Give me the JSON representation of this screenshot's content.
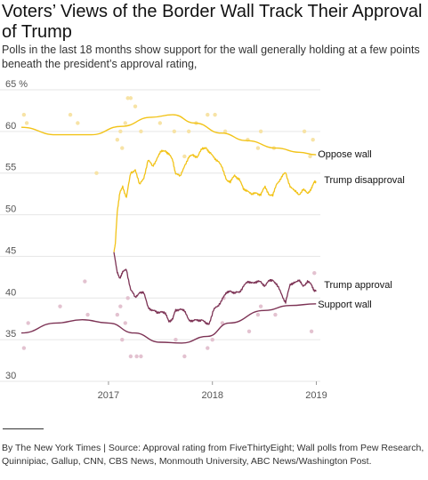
{
  "header": {
    "title": "Voters’ Views of the Border Wall Track Their Approval of Trump",
    "subtitle": "Polls in the last 18 months show support for the wall generally holding at a few points beneath the president’s approval rating,"
  },
  "footer": {
    "credit": "By The New York Times | Source: Approval rating from FiveThirtyEight; Wall polls from Pew Research, Quinnipiac, Gallup, CNN, CBS News, Monmouth University, ABC News/Washington Post."
  },
  "colors": {
    "approval": "#7d3355",
    "disapproval": "#f2c318",
    "oppose_dots": "#f7e3a6",
    "support_dots": "#e3c2d0",
    "grid": "#e6e6e6"
  },
  "chart_data": {
    "type": "line",
    "x_range": [
      "2016-03-01",
      "2019-01-15"
    ],
    "ylim": [
      30,
      65
    ],
    "y_ticks": [
      30,
      35,
      40,
      45,
      50,
      55,
      60,
      65
    ],
    "y_tick_labels": [
      "30",
      "35",
      "40",
      "45",
      "50",
      "55",
      "60",
      "65 %"
    ],
    "x_ticks": [
      "2017",
      "2018",
      "2019"
    ],
    "x_tick_dates": [
      "2017-01-01",
      "2018-01-01",
      "2019-01-01"
    ],
    "grid": "horizontal",
    "series": [
      {
        "name": "Oppose wall",
        "style": "trend",
        "points": [
          [
            "2016-03-01",
            60.5
          ],
          [
            "2016-07-01",
            59.6
          ],
          [
            "2016-11-01",
            59.6
          ],
          [
            "2017-02-15",
            60.6
          ],
          [
            "2017-06-01",
            61.7
          ],
          [
            "2017-08-15",
            62.0
          ],
          [
            "2017-11-01",
            61.0
          ],
          [
            "2018-02-01",
            59.8
          ],
          [
            "2018-05-01",
            58.9
          ],
          [
            "2018-08-15",
            58.0
          ],
          [
            "2018-11-01",
            57.5
          ],
          [
            "2018-12-31",
            57.2
          ]
        ]
      },
      {
        "name": "Trump disapproval",
        "style": "daily",
        "points": [
          [
            "2017-01-20",
            45.5
          ],
          [
            "2017-01-25",
            46.5
          ],
          [
            "2017-02-01",
            50.5
          ],
          [
            "2017-02-10",
            52.5
          ],
          [
            "2017-02-20",
            53.5
          ],
          [
            "2017-03-05",
            52.0
          ],
          [
            "2017-03-20",
            55.0
          ],
          [
            "2017-04-05",
            55.5
          ],
          [
            "2017-04-20",
            53.5
          ],
          [
            "2017-05-05",
            54.5
          ],
          [
            "2017-05-20",
            56.5
          ],
          [
            "2017-06-05",
            55.8
          ],
          [
            "2017-06-20",
            56.8
          ],
          [
            "2017-07-05",
            57.5
          ],
          [
            "2017-07-20",
            57.8
          ],
          [
            "2017-08-01",
            57.2
          ],
          [
            "2017-08-15",
            56.5
          ],
          [
            "2017-08-25",
            55.0
          ],
          [
            "2017-09-10",
            54.5
          ],
          [
            "2017-09-25",
            56.0
          ],
          [
            "2017-10-10",
            56.8
          ],
          [
            "2017-10-25",
            57.2
          ],
          [
            "2017-11-10",
            57.0
          ],
          [
            "2017-11-25",
            57.8
          ],
          [
            "2017-12-10",
            58.2
          ],
          [
            "2017-12-20",
            57.4
          ],
          [
            "2018-01-05",
            57.0
          ],
          [
            "2018-01-20",
            56.5
          ],
          [
            "2018-02-05",
            55.5
          ],
          [
            "2018-02-20",
            54.3
          ],
          [
            "2018-03-05",
            53.8
          ],
          [
            "2018-03-20",
            54.8
          ],
          [
            "2018-04-05",
            54.3
          ],
          [
            "2018-04-20",
            53.0
          ],
          [
            "2018-05-05",
            53.0
          ],
          [
            "2018-05-20",
            52.3
          ],
          [
            "2018-06-05",
            52.7
          ],
          [
            "2018-06-20",
            52.4
          ],
          [
            "2018-07-05",
            53.3
          ],
          [
            "2018-07-20",
            52.5
          ],
          [
            "2018-08-01",
            52.2
          ],
          [
            "2018-08-15",
            53.8
          ],
          [
            "2018-09-01",
            54.5
          ],
          [
            "2018-09-15",
            55.0
          ],
          [
            "2018-10-01",
            53.5
          ],
          [
            "2018-10-15",
            52.8
          ],
          [
            "2018-11-01",
            52.5
          ],
          [
            "2018-11-15",
            53.0
          ],
          [
            "2018-12-01",
            52.5
          ],
          [
            "2018-12-15",
            53.3
          ],
          [
            "2018-12-25",
            53.8
          ],
          [
            "2018-12-31",
            54.0
          ]
        ]
      },
      {
        "name": "Trump approval",
        "style": "daily",
        "points": [
          [
            "2017-01-20",
            45.5
          ],
          [
            "2017-01-25",
            44.5
          ],
          [
            "2017-02-01",
            43.0
          ],
          [
            "2017-02-10",
            42.5
          ],
          [
            "2017-02-20",
            43.0
          ],
          [
            "2017-03-05",
            43.5
          ],
          [
            "2017-03-20",
            41.0
          ],
          [
            "2017-04-05",
            40.0
          ],
          [
            "2017-04-20",
            40.8
          ],
          [
            "2017-05-05",
            40.5
          ],
          [
            "2017-05-20",
            39.0
          ],
          [
            "2017-06-05",
            38.5
          ],
          [
            "2017-06-20",
            38.2
          ],
          [
            "2017-07-05",
            38.5
          ],
          [
            "2017-07-20",
            38.0
          ],
          [
            "2017-08-01",
            37.3
          ],
          [
            "2017-08-15",
            37.5
          ],
          [
            "2017-08-25",
            38.5
          ],
          [
            "2017-09-10",
            38.8
          ],
          [
            "2017-09-25",
            38.3
          ],
          [
            "2017-10-10",
            37.5
          ],
          [
            "2017-10-25",
            37.2
          ],
          [
            "2017-11-10",
            37.3
          ],
          [
            "2017-11-25",
            37.5
          ],
          [
            "2017-12-10",
            36.8
          ],
          [
            "2017-12-20",
            37.0
          ],
          [
            "2018-01-05",
            38.5
          ],
          [
            "2018-01-20",
            39.0
          ],
          [
            "2018-02-05",
            40.0
          ],
          [
            "2018-02-20",
            40.5
          ],
          [
            "2018-03-05",
            41.0
          ],
          [
            "2018-03-20",
            40.5
          ],
          [
            "2018-04-05",
            40.7
          ],
          [
            "2018-04-20",
            41.5
          ],
          [
            "2018-05-05",
            41.8
          ],
          [
            "2018-05-20",
            42.0
          ],
          [
            "2018-06-05",
            41.8
          ],
          [
            "2018-06-20",
            42.0
          ],
          [
            "2018-07-05",
            41.5
          ],
          [
            "2018-07-20",
            42.0
          ],
          [
            "2018-08-01",
            42.3
          ],
          [
            "2018-08-15",
            41.5
          ],
          [
            "2018-09-01",
            40.5
          ],
          [
            "2018-09-15",
            39.5
          ],
          [
            "2018-10-01",
            41.5
          ],
          [
            "2018-10-15",
            42.0
          ],
          [
            "2018-11-01",
            42.0
          ],
          [
            "2018-11-15",
            41.5
          ],
          [
            "2018-12-01",
            42.0
          ],
          [
            "2018-12-15",
            41.5
          ],
          [
            "2018-12-25",
            41.0
          ],
          [
            "2018-12-31",
            40.8
          ]
        ]
      },
      {
        "name": "Support wall",
        "style": "trend",
        "points": [
          [
            "2016-03-01",
            35.8
          ],
          [
            "2016-07-01",
            37.0
          ],
          [
            "2016-10-01",
            37.4
          ],
          [
            "2017-01-01",
            37.0
          ],
          [
            "2017-04-01",
            35.8
          ],
          [
            "2017-07-01",
            34.7
          ],
          [
            "2017-09-15",
            34.6
          ],
          [
            "2017-12-15",
            35.4
          ],
          [
            "2018-03-01",
            37.0
          ],
          [
            "2018-07-01",
            38.5
          ],
          [
            "2018-10-01",
            39.1
          ],
          [
            "2018-12-31",
            39.3
          ]
        ]
      }
    ],
    "polls": {
      "oppose": [
        [
          "2016-03-10",
          62
        ],
        [
          "2016-03-20",
          61
        ],
        [
          "2016-08-20",
          62
        ],
        [
          "2016-09-15",
          61
        ],
        [
          "2016-11-20",
          55
        ],
        [
          "2017-02-01",
          59
        ],
        [
          "2017-02-12",
          60
        ],
        [
          "2017-02-18",
          58
        ],
        [
          "2017-03-01",
          61
        ],
        [
          "2017-03-10",
          64
        ],
        [
          "2017-03-20",
          64
        ],
        [
          "2017-04-05",
          63
        ],
        [
          "2017-04-25",
          60
        ],
        [
          "2017-07-01",
          61
        ],
        [
          "2017-08-20",
          60
        ],
        [
          "2017-09-25",
          57
        ],
        [
          "2017-10-10",
          60
        ],
        [
          "2017-11-05",
          61
        ],
        [
          "2017-12-15",
          62
        ],
        [
          "2018-01-10",
          62
        ],
        [
          "2018-02-15",
          60
        ],
        [
          "2018-05-05",
          59
        ],
        [
          "2018-06-10",
          58
        ],
        [
          "2018-06-20",
          60
        ],
        [
          "2018-08-05",
          58
        ],
        [
          "2018-11-20",
          60
        ],
        [
          "2018-12-10",
          57
        ],
        [
          "2018-12-20",
          59
        ]
      ],
      "support": [
        [
          "2016-03-10",
          34
        ],
        [
          "2016-03-25",
          37
        ],
        [
          "2016-07-15",
          39
        ],
        [
          "2016-10-10",
          42
        ],
        [
          "2016-10-20",
          38
        ],
        [
          "2017-02-01",
          38
        ],
        [
          "2017-02-12",
          39
        ],
        [
          "2017-02-18",
          35
        ],
        [
          "2017-03-01",
          37
        ],
        [
          "2017-03-10",
          40
        ],
        [
          "2017-03-20",
          33
        ],
        [
          "2017-04-10",
          33
        ],
        [
          "2017-04-25",
          33
        ],
        [
          "2017-08-25",
          35
        ],
        [
          "2017-09-25",
          33
        ],
        [
          "2017-12-15",
          34
        ],
        [
          "2018-01-01",
          35
        ],
        [
          "2018-02-05",
          37
        ],
        [
          "2018-02-10",
          40
        ],
        [
          "2018-05-10",
          36
        ],
        [
          "2018-06-10",
          38
        ],
        [
          "2018-06-20",
          39
        ],
        [
          "2018-08-10",
          38
        ],
        [
          "2018-12-15",
          36
        ],
        [
          "2018-12-25",
          43
        ]
      ]
    },
    "label_anchor_dates": {
      "Oppose wall": "2018-12-31",
      "Trump disapproval": "2018-12-31",
      "Trump approval": "2018-12-31",
      "Support wall": "2018-12-31"
    }
  }
}
